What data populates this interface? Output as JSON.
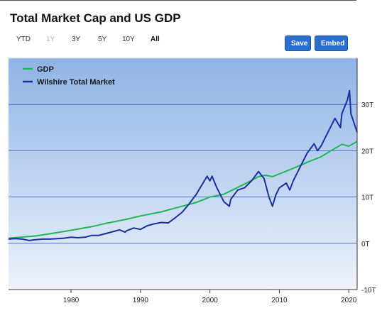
{
  "title": "Total Market Cap and US GDP",
  "range_buttons": [
    {
      "label": "YTD",
      "state": "normal"
    },
    {
      "label": "1Y",
      "state": "disabled"
    },
    {
      "label": "3Y",
      "state": "normal"
    },
    {
      "label": "5Y",
      "state": "normal"
    },
    {
      "label": "10Y",
      "state": "normal"
    },
    {
      "label": "All",
      "state": "active"
    }
  ],
  "actions": {
    "save_label": "Save",
    "embed_label": "Embed"
  },
  "colors": {
    "gdp": "#1db954",
    "market": "#1a2fa0",
    "plot_top": "#8fb3e6",
    "plot_bottom": "#eef3fb",
    "gridline": "#2b5fc2",
    "accent_button": "#2a6fd0"
  },
  "chart_data": {
    "type": "line",
    "title": "Total Market Cap and US GDP",
    "xlabel": "",
    "ylabel": "",
    "xlim": [
      1971,
      2021.2
    ],
    "ylim": [
      -10,
      40
    ],
    "x_ticks": [
      "1980",
      "1990",
      "2000",
      "2010",
      "2020"
    ],
    "y_ticks": [
      "-10T",
      "0T",
      "10T",
      "20T",
      "30T"
    ],
    "grid": true,
    "legend_position": "top-left",
    "series": [
      {
        "name": "GDP",
        "points": [
          [
            1971,
            1.1
          ],
          [
            1975,
            1.6
          ],
          [
            1978,
            2.3
          ],
          [
            1980,
            2.8
          ],
          [
            1983,
            3.6
          ],
          [
            1985,
            4.3
          ],
          [
            1988,
            5.2
          ],
          [
            1990,
            5.9
          ],
          [
            1993,
            6.8
          ],
          [
            1995,
            7.6
          ],
          [
            1998,
            8.8
          ],
          [
            2000,
            10.0
          ],
          [
            2002,
            10.6
          ],
          [
            2005,
            12.8
          ],
          [
            2007,
            14.4
          ],
          [
            2008,
            14.7
          ],
          [
            2009,
            14.4
          ],
          [
            2010,
            15.0
          ],
          [
            2012,
            16.2
          ],
          [
            2014,
            17.5
          ],
          [
            2016,
            18.7
          ],
          [
            2018,
            20.5
          ],
          [
            2019,
            21.4
          ],
          [
            2020,
            21.0
          ],
          [
            2021.2,
            22.0
          ]
        ]
      },
      {
        "name": "Wilshire Total Market",
        "points": [
          [
            1971,
            0.9
          ],
          [
            1972,
            1.0
          ],
          [
            1973,
            0.9
          ],
          [
            1974,
            0.6
          ],
          [
            1975,
            0.8
          ],
          [
            1976,
            0.9
          ],
          [
            1977,
            0.9
          ],
          [
            1978,
            1.0
          ],
          [
            1979,
            1.1
          ],
          [
            1980,
            1.3
          ],
          [
            1981,
            1.2
          ],
          [
            1982,
            1.3
          ],
          [
            1983,
            1.7
          ],
          [
            1984,
            1.7
          ],
          [
            1985,
            2.1
          ],
          [
            1986,
            2.5
          ],
          [
            1987,
            2.9
          ],
          [
            1987.8,
            2.4
          ],
          [
            1988,
            2.7
          ],
          [
            1989,
            3.3
          ],
          [
            1990,
            3.0
          ],
          [
            1991,
            3.8
          ],
          [
            1992,
            4.2
          ],
          [
            1993,
            4.5
          ],
          [
            1994,
            4.4
          ],
          [
            1995,
            5.5
          ],
          [
            1996,
            6.7
          ],
          [
            1997,
            8.5
          ],
          [
            1998,
            10.5
          ],
          [
            1999,
            13.0
          ],
          [
            1999.6,
            14.5
          ],
          [
            2000,
            13.5
          ],
          [
            2000.3,
            14.5
          ],
          [
            2001,
            12.0
          ],
          [
            2002,
            9.0
          ],
          [
            2002.8,
            8.0
          ],
          [
            2003,
            9.5
          ],
          [
            2004,
            11.5
          ],
          [
            2005,
            12.0
          ],
          [
            2006,
            13.5
          ],
          [
            2007,
            15.5
          ],
          [
            2007.8,
            14.0
          ],
          [
            2008.5,
            10.0
          ],
          [
            2009,
            8.0
          ],
          [
            2009.5,
            10.5
          ],
          [
            2010,
            12.0
          ],
          [
            2011,
            13.0
          ],
          [
            2011.5,
            11.5
          ],
          [
            2012,
            13.5
          ],
          [
            2013,
            16.5
          ],
          [
            2014,
            19.5
          ],
          [
            2015,
            21.5
          ],
          [
            2015.5,
            20.0
          ],
          [
            2016,
            21.0
          ],
          [
            2017,
            24.0
          ],
          [
            2018,
            27.0
          ],
          [
            2018.8,
            25.0
          ],
          [
            2019,
            28.0
          ],
          [
            2019.8,
            31.0
          ],
          [
            2020.1,
            33.0
          ],
          [
            2020.3,
            28.0
          ],
          [
            2021.2,
            24.0
          ]
        ]
      }
    ]
  }
}
